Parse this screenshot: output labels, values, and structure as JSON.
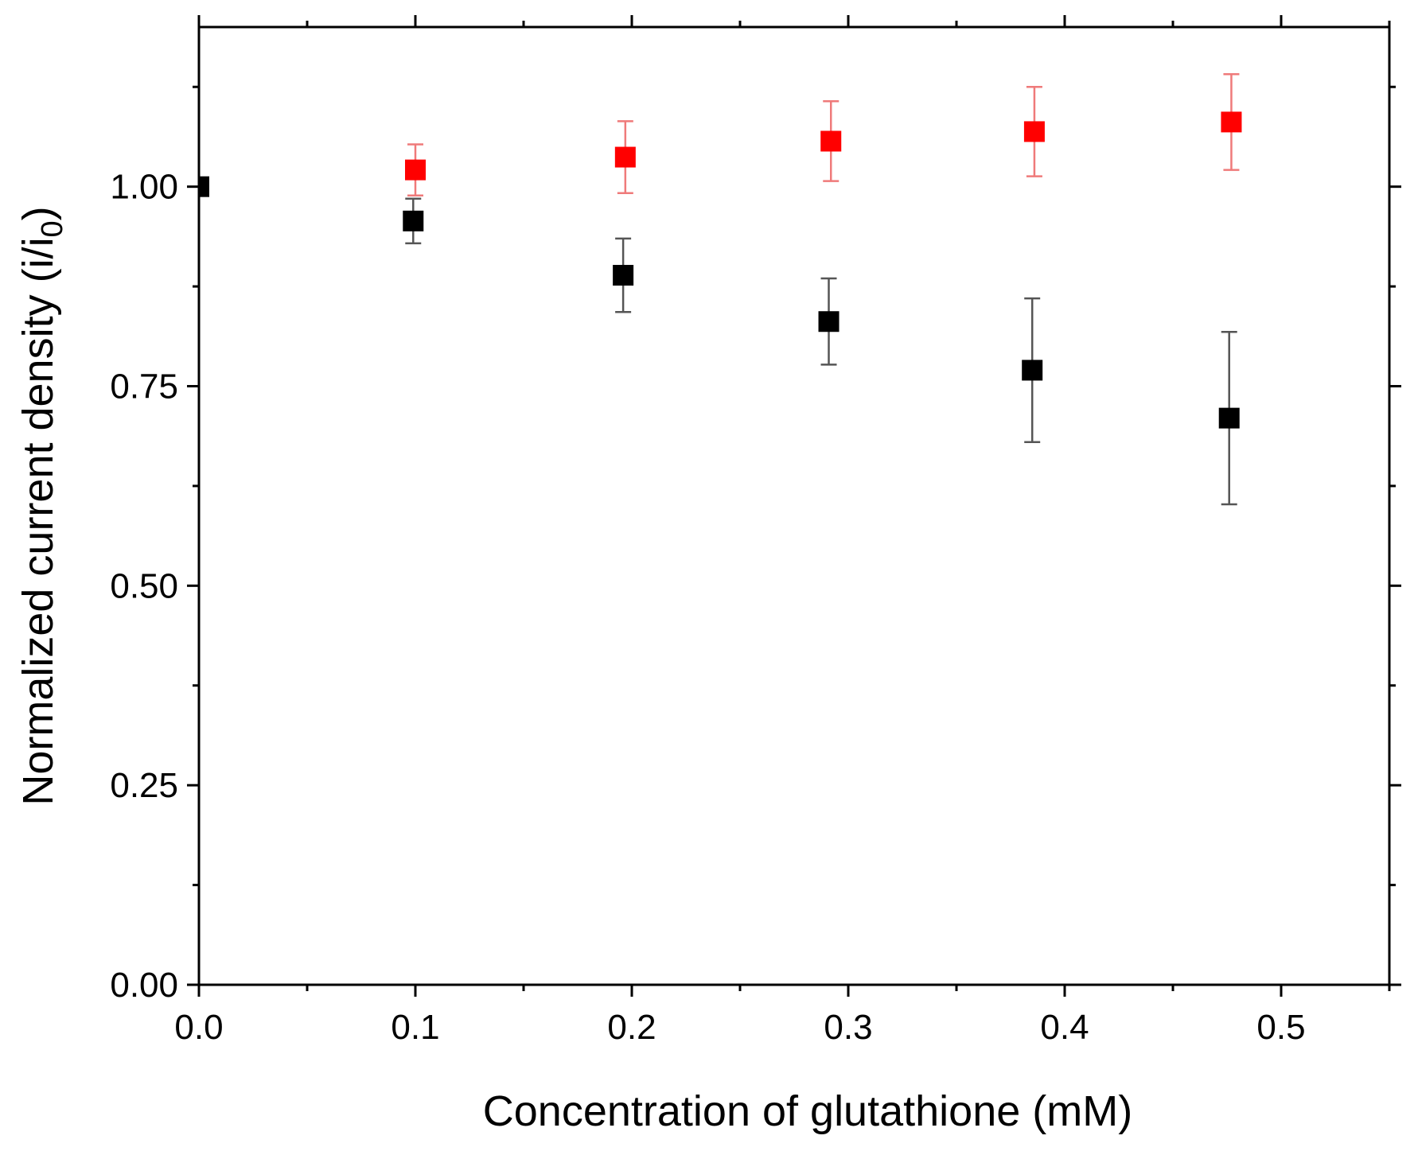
{
  "chart_data": {
    "type": "scatter",
    "title": "",
    "xlabel": "Concentration of glutathione (mM)",
    "ylabel": {
      "main": "Normalized current density (i/i",
      "subscript": "0",
      "close": ")"
    },
    "xlim": [
      0.0,
      0.55
    ],
    "ylim": [
      0.0,
      1.2
    ],
    "xticks": [
      0.0,
      0.1,
      0.2,
      0.3,
      0.4,
      0.5
    ],
    "xtick_labels": [
      "0.0",
      "0.1",
      "0.2",
      "0.3",
      "0.4",
      "0.5"
    ],
    "x_minor_ticks": [
      0.05,
      0.15,
      0.25,
      0.35,
      0.45,
      0.55
    ],
    "yticks": [
      0.0,
      0.25,
      0.5,
      0.75,
      1.0
    ],
    "ytick_labels": [
      "0.00",
      "0.25",
      "0.50",
      "0.75",
      "1.00"
    ],
    "y_minor_ticks": [
      0.125,
      0.375,
      0.625,
      0.875,
      1.125
    ],
    "grid": false,
    "legend": "none",
    "series": [
      {
        "name": "red",
        "color": "#ff0000",
        "error_color": "#ef7a7a",
        "x": [
          0.1,
          0.197,
          0.292,
          0.386,
          0.477
        ],
        "y": [
          1.021,
          1.037,
          1.057,
          1.069,
          1.081
        ],
        "yerr": [
          0.032,
          0.045,
          0.05,
          0.056,
          0.06
        ]
      },
      {
        "name": "black",
        "color": "#000000",
        "error_color": "#555555",
        "x": [
          0.0,
          0.099,
          0.196,
          0.291,
          0.385,
          0.476
        ],
        "y": [
          1.0,
          0.957,
          0.889,
          0.831,
          0.77,
          0.71
        ],
        "yerr": [
          0.0,
          0.028,
          0.046,
          0.054,
          0.09,
          0.108
        ]
      }
    ]
  }
}
